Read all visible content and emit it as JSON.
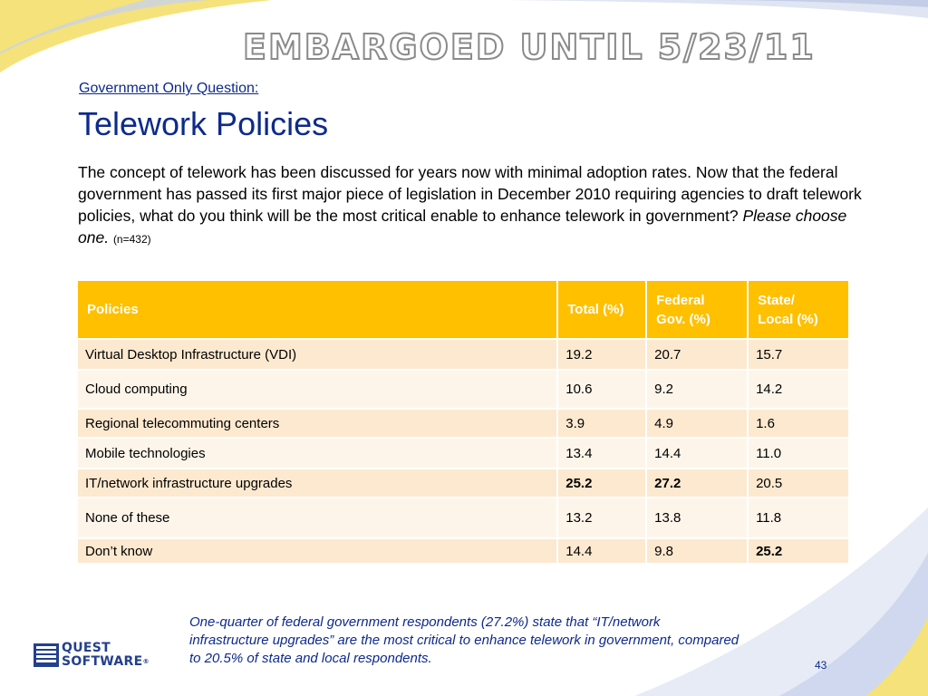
{
  "header": {
    "stamp": "EMBARGOED UNTIL  5/23/11",
    "subtitle": "Government Only Question:",
    "title": "Telework Policies"
  },
  "question": {
    "text": "The concept of telework has been discussed for years now with minimal adoption rates. Now that the federal government has passed its first major piece of legislation in December 2010 requiring agencies to draft telework policies, what do you think will be the most critical enable to enhance telework in government?",
    "instruction": "Please choose one.",
    "sample": "(n=432)"
  },
  "table": {
    "headers": {
      "policies": "Policies",
      "total": "Total (%)",
      "federal_line1": "Federal",
      "federal_line2": "Gov. (%)",
      "state_line1": "State/",
      "state_line2": "Local (%)"
    },
    "rows": [
      {
        "policy": "Virtual Desktop Infrastructure (VDI)",
        "total": "19.2",
        "federal": "20.7",
        "state": "15.7"
      },
      {
        "policy": "Cloud computing",
        "total": "10.6",
        "federal": "9.2",
        "state": "14.2"
      },
      {
        "policy": "Regional telecommuting centers",
        "total": "3.9",
        "federal": "4.9",
        "state": "1.6"
      },
      {
        "policy": "Mobile technologies",
        "total": "13.4",
        "federal": "14.4",
        "state": "11.0"
      },
      {
        "policy": "IT/network infrastructure upgrades",
        "total": "25.2",
        "federal": "27.2",
        "state": "20.5"
      },
      {
        "policy": "None of these",
        "total": "13.2",
        "federal": "13.8",
        "state": "11.8"
      },
      {
        "policy": "Don’t know",
        "total": "14.4",
        "federal": "9.8",
        "state": "25.2"
      }
    ]
  },
  "caption": "One-quarter of federal government respondents (27.2%) state that “IT/network infrastructure upgrades” are the most critical to enhance telework in government, compared to 20.5% of state and local respondents.",
  "logo": {
    "line1": "QUEST",
    "line2": "SOFTWARE",
    "registered": "®",
    "icon": "quest-software-logo-icon"
  },
  "page_number": "43",
  "colors": {
    "accent_blue": "#0d2a8c",
    "header_gold": "#ffc000",
    "row_dark": "#fde9d0",
    "row_light": "#fef5ea"
  }
}
